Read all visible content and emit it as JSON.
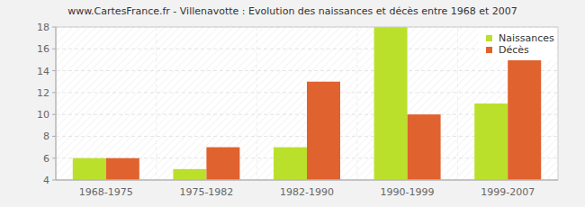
{
  "chart_data": {
    "type": "bar",
    "title": "www.CartesFrance.fr - Villenavotte : Evolution des naissances et décès entre 1968 et 2007",
    "categories": [
      "1968-1975",
      "1975-1982",
      "1982-1990",
      "1990-1999",
      "1999-2007"
    ],
    "series": [
      {
        "name": "Naissances",
        "color": "#bbe02c",
        "values": [
          6,
          5,
          7,
          18,
          11
        ]
      },
      {
        "name": "Décès",
        "color": "#e0622e",
        "values": [
          6,
          7,
          13,
          10,
          15
        ]
      }
    ],
    "ylim": [
      4,
      18
    ],
    "yticks": [
      4,
      6,
      8,
      10,
      12,
      14,
      16,
      18
    ],
    "grid": true,
    "legend": "top-right"
  }
}
